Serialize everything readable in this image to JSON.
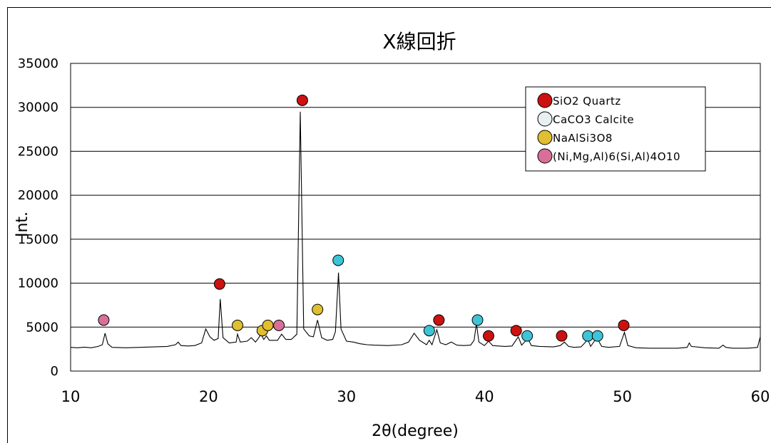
{
  "chart_data": {
    "type": "line",
    "title": "X線回折",
    "xlabel": "2θ(degree)",
    "ylabel": "Int.",
    "xlim": [
      10,
      60
    ],
    "ylim": [
      0,
      35000
    ],
    "x_ticks": [
      "10",
      "20",
      "30",
      "40",
      "50",
      "60"
    ],
    "y_ticks": [
      "0",
      "5000",
      "10000",
      "15000",
      "20000",
      "25000",
      "30000",
      "35000"
    ],
    "grid": "horizontal",
    "legend_position": "top-right",
    "series": [
      {
        "points": [
          [
            10,
            2700
          ],
          [
            10.5,
            2650
          ],
          [
            11,
            2720
          ],
          [
            11.5,
            2650
          ],
          [
            12,
            2800
          ],
          [
            12.3,
            3000
          ],
          [
            12.5,
            4300
          ],
          [
            12.7,
            3100
          ],
          [
            13,
            2700
          ],
          [
            14,
            2650
          ],
          [
            15,
            2700
          ],
          [
            16,
            2750
          ],
          [
            17,
            2800
          ],
          [
            17.6,
            3000
          ],
          [
            17.8,
            3300
          ],
          [
            18,
            2900
          ],
          [
            18.5,
            2850
          ],
          [
            19,
            2900
          ],
          [
            19.5,
            3200
          ],
          [
            19.8,
            4800
          ],
          [
            20.1,
            3900
          ],
          [
            20.4,
            3500
          ],
          [
            20.7,
            3700
          ],
          [
            20.85,
            8200
          ],
          [
            21.05,
            3800
          ],
          [
            21.5,
            3200
          ],
          [
            22,
            3300
          ],
          [
            22.1,
            4200
          ],
          [
            22.3,
            3300
          ],
          [
            22.8,
            3400
          ],
          [
            23.1,
            3800
          ],
          [
            23.4,
            3300
          ],
          [
            23.6,
            3700
          ],
          [
            23.8,
            4200
          ],
          [
            24,
            3600
          ],
          [
            24.2,
            4000
          ],
          [
            24.4,
            3500
          ],
          [
            25,
            3500
          ],
          [
            25.3,
            4200
          ],
          [
            25.6,
            3600
          ],
          [
            26,
            3600
          ],
          [
            26.4,
            4200
          ],
          [
            26.65,
            29500
          ],
          [
            26.9,
            4800
          ],
          [
            27.3,
            4000
          ],
          [
            27.6,
            3900
          ],
          [
            27.9,
            5800
          ],
          [
            28.2,
            3800
          ],
          [
            28.6,
            3500
          ],
          [
            29,
            3600
          ],
          [
            29.2,
            4500
          ],
          [
            29.42,
            11200
          ],
          [
            29.6,
            4800
          ],
          [
            30,
            3400
          ],
          [
            30.5,
            3300
          ],
          [
            31,
            3100
          ],
          [
            31.5,
            3000
          ],
          [
            32,
            2950
          ],
          [
            33,
            2900
          ],
          [
            34,
            3000
          ],
          [
            34.5,
            3300
          ],
          [
            34.9,
            4300
          ],
          [
            35.3,
            3500
          ],
          [
            35.8,
            3000
          ],
          [
            36,
            3500
          ],
          [
            36.2,
            3000
          ],
          [
            36.55,
            4700
          ],
          [
            36.8,
            3200
          ],
          [
            37.2,
            3000
          ],
          [
            37.6,
            3300
          ],
          [
            38,
            2950
          ],
          [
            38.5,
            2900
          ],
          [
            39,
            2950
          ],
          [
            39.25,
            3500
          ],
          [
            39.42,
            5400
          ],
          [
            39.6,
            3300
          ],
          [
            40,
            2900
          ],
          [
            40.3,
            3400
          ],
          [
            40.6,
            2900
          ],
          [
            41,
            2850
          ],
          [
            41.5,
            2800
          ],
          [
            42,
            2850
          ],
          [
            42.45,
            3900
          ],
          [
            42.7,
            2950
          ],
          [
            43.15,
            3700
          ],
          [
            43.4,
            2900
          ],
          [
            44,
            2800
          ],
          [
            45,
            2750
          ],
          [
            45.5,
            2900
          ],
          [
            45.8,
            3300
          ],
          [
            46.1,
            2800
          ],
          [
            46.5,
            2700
          ],
          [
            47,
            2750
          ],
          [
            47.5,
            3600
          ],
          [
            47.7,
            2800
          ],
          [
            48.15,
            3800
          ],
          [
            48.5,
            2800
          ],
          [
            49,
            2700
          ],
          [
            49.8,
            2800
          ],
          [
            50.15,
            4400
          ],
          [
            50.4,
            2900
          ],
          [
            51,
            2650
          ],
          [
            52,
            2600
          ],
          [
            53,
            2600
          ],
          [
            54,
            2600
          ],
          [
            54.7,
            2700
          ],
          [
            54.85,
            3200
          ],
          [
            55,
            2800
          ],
          [
            56,
            2650
          ],
          [
            57,
            2600
          ],
          [
            57.3,
            2950
          ],
          [
            57.5,
            2700
          ],
          [
            58,
            2600
          ],
          [
            59,
            2600
          ],
          [
            59.5,
            2650
          ],
          [
            59.8,
            2700
          ],
          [
            60,
            3900
          ]
        ]
      }
    ],
    "markers": [
      {
        "phase": 3,
        "x": 12.4,
        "y": 5800
      },
      {
        "phase": 0,
        "x": 20.8,
        "y": 9900
      },
      {
        "phase": 2,
        "x": 22.1,
        "y": 5200
      },
      {
        "phase": 2,
        "x": 23.9,
        "y": 4600
      },
      {
        "phase": 2,
        "x": 24.3,
        "y": 5200
      },
      {
        "phase": 3,
        "x": 25.1,
        "y": 5200
      },
      {
        "phase": 0,
        "x": 26.8,
        "y": 30800
      },
      {
        "phase": 2,
        "x": 27.9,
        "y": 7000
      },
      {
        "phase": 1,
        "x": 29.4,
        "y": 12600
      },
      {
        "phase": 1,
        "x": 36.0,
        "y": 4600
      },
      {
        "phase": 0,
        "x": 36.7,
        "y": 5800
      },
      {
        "phase": 1,
        "x": 39.5,
        "y": 5800
      },
      {
        "phase": 0,
        "x": 40.3,
        "y": 4000
      },
      {
        "phase": 0,
        "x": 42.3,
        "y": 4600
      },
      {
        "phase": 1,
        "x": 43.1,
        "y": 4000
      },
      {
        "phase": 0,
        "x": 45.6,
        "y": 4000
      },
      {
        "phase": 1,
        "x": 47.5,
        "y": 4000
      },
      {
        "phase": 1,
        "x": 48.2,
        "y": 4000
      },
      {
        "phase": 0,
        "x": 50.1,
        "y": 5200
      }
    ],
    "legend": [
      {
        "label": "SiO2 Quartz",
        "color": "#cc1111"
      },
      {
        "label": "CaCO3 Calcite",
        "color": "#e8eff0"
      },
      {
        "label": "NaAlSi3O8",
        "color": "#e0bf30"
      },
      {
        "label": "(Ni,Mg,Al)6(Si,Al)4O10",
        "color": "#d86f99"
      }
    ],
    "marker_colors": [
      "#cc1111",
      "#3dc4d6",
      "#e0bf30",
      "#d86f99"
    ],
    "line_color": "#000000",
    "grid_color": "#000000"
  }
}
